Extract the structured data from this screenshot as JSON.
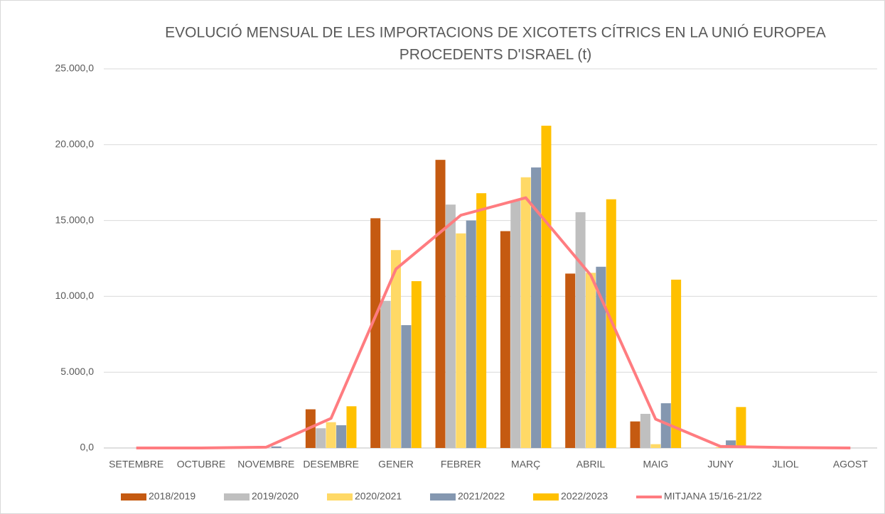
{
  "chart_data": {
    "type": "bar",
    "title": [
      "EVOLUCIÓ MENSUAL DE LES IMPORTACIONS DE XICOTETS CÍTRICS EN LA UNIÓ EUROPEA",
      "PROCEDENTS D'ISRAEL  (t)"
    ],
    "categories": [
      "SETEMBRE",
      "OCTUBRE",
      "NOVEMBRE",
      "DESEMBRE",
      "GENER",
      "FEBRER",
      "MARÇ",
      "ABRIL",
      "MAIG",
      "JUNY",
      "JLIOL",
      "AGOST"
    ],
    "series": [
      {
        "name": "2018/2019",
        "color": "#c55a11",
        "values": [
          0,
          0,
          0,
          2550,
          15150,
          19000,
          14300,
          11500,
          1750,
          0,
          0,
          0
        ]
      },
      {
        "name": "2019/2020",
        "color": "#bfbfbf",
        "values": [
          0,
          0,
          0,
          1300,
          9700,
          16050,
          16300,
          15550,
          2250,
          0,
          0,
          0
        ]
      },
      {
        "name": "2020/2021",
        "color": "#ffd966",
        "values": [
          0,
          0,
          0,
          1700,
          13050,
          14150,
          17850,
          11550,
          250,
          50,
          0,
          0
        ]
      },
      {
        "name": "2021/2022",
        "color": "#8497b0",
        "values": [
          0,
          0,
          100,
          1500,
          8100,
          15000,
          18500,
          11950,
          2950,
          500,
          0,
          0
        ]
      },
      {
        "name": "2022/2023",
        "color": "#ffc000",
        "values": [
          0,
          0,
          0,
          2750,
          11000,
          16800,
          21250,
          16400,
          11100,
          2700,
          0,
          0
        ]
      },
      {
        "name": "MITJANA 15/16-21/22",
        "color": "#ff7c80",
        "type": "line",
        "values": [
          0,
          0,
          50,
          1950,
          11800,
          15350,
          16500,
          11400,
          1900,
          100,
          30,
          0
        ]
      }
    ],
    "ylim": [
      0,
      25000
    ],
    "yticks": [
      {
        "value": 0,
        "label": "0,0"
      },
      {
        "value": 5000,
        "label": "5.000,0"
      },
      {
        "value": 10000,
        "label": "10.000,0"
      },
      {
        "value": 15000,
        "label": "15.000,0"
      },
      {
        "value": 20000,
        "label": "20.000,0"
      },
      {
        "value": 25000,
        "label": "25.000,0"
      }
    ],
    "grid": true
  }
}
